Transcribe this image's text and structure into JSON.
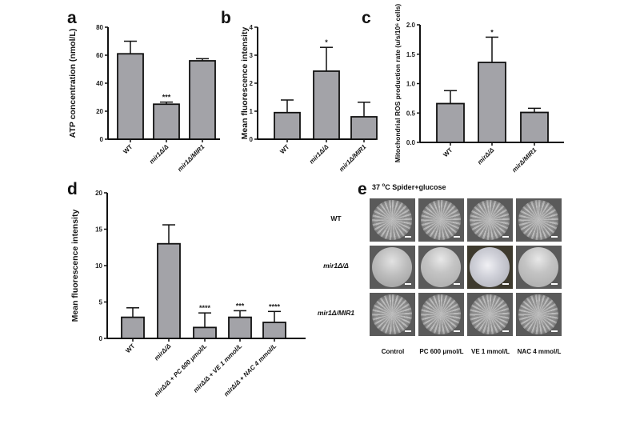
{
  "figure": {
    "panel_labels": {
      "a": "a",
      "b": "b",
      "c": "c",
      "d": "d",
      "e": "e"
    }
  },
  "chart_data": [
    {
      "panel": "a",
      "type": "bar",
      "title": "",
      "ylabel": "ATP concentration (nmol/L)",
      "xlabel": "",
      "ylim": [
        0,
        80
      ],
      "yticks": [
        0,
        20,
        40,
        60,
        80
      ],
      "categories": [
        "WT",
        "mir1Δ/Δ",
        "mir1Δ/MIR1"
      ],
      "values": [
        61,
        25,
        56
      ],
      "errors": [
        9,
        1.5,
        1.5
      ],
      "significance": [
        "",
        "***",
        ""
      ],
      "grid": false
    },
    {
      "panel": "b",
      "type": "bar",
      "title": "",
      "ylabel": "Mean fluorescence intensity",
      "xlabel": "",
      "ylim": [
        0,
        4
      ],
      "yticks": [
        0,
        1,
        2,
        3,
        4
      ],
      "categories": [
        "WT",
        "mir1Δ/Δ",
        "mir1Δ/MIR1"
      ],
      "values": [
        0.95,
        2.43,
        0.8
      ],
      "errors": [
        0.45,
        0.85,
        0.52
      ],
      "significance": [
        "",
        "*",
        ""
      ],
      "grid": false
    },
    {
      "panel": "c",
      "type": "bar",
      "title": "",
      "ylabel": "Mitochondrial ROS production rate (u/s/10⁶ cells)",
      "xlabel": "",
      "ylim": [
        0,
        2.0
      ],
      "yticks": [
        "0.0",
        "0.5",
        "1.0",
        "1.5",
        "2.0"
      ],
      "categories": [
        "WT",
        "mirΔ/Δ",
        "mirΔ/MIR1"
      ],
      "values": [
        0.66,
        1.36,
        0.51
      ],
      "errors": [
        0.22,
        0.43,
        0.07
      ],
      "significance": [
        "",
        "*",
        ""
      ],
      "grid": false
    },
    {
      "panel": "d",
      "type": "bar",
      "title": "",
      "ylabel": "Mean fluorescence intensity",
      "xlabel": "",
      "ylim": [
        0,
        20
      ],
      "yticks": [
        0,
        5,
        10,
        15,
        20
      ],
      "categories": [
        "WT",
        "mirΔ/Δ",
        "mirΔ/Δ + PC 600 μmol/L",
        "mirΔ/Δ + VE 1 mmol/L",
        "mirΔ/Δ + NAC 4 mmol/L"
      ],
      "values": [
        2.9,
        13.0,
        1.5,
        2.9,
        2.2
      ],
      "errors": [
        1.3,
        2.6,
        2.0,
        0.9,
        1.5
      ],
      "significance": [
        "",
        "",
        "****",
        "***",
        "****"
      ],
      "grid": false
    }
  ],
  "panel_e": {
    "title": "37 °C Spider+glucose",
    "title_parts": {
      "num": "37 ",
      "deg": "o",
      "rest": "C Spider+glucose"
    },
    "rows": [
      "WT",
      "mir1Δ/Δ",
      "mir1Δ/MIR1"
    ],
    "columns": [
      "Control",
      "PC 600 μmol/L",
      "VE 1 mmol/L",
      "NAC 4 mmol/L"
    ],
    "colony_morphology": [
      [
        "wrinkled",
        "wrinkled",
        "wrinkled",
        "wrinkled"
      ],
      [
        "smooth",
        "smooth-spots",
        "shiny",
        "smooth-spots"
      ],
      [
        "wrinkled",
        "wrinkled",
        "wrinkled",
        "wrinkled"
      ]
    ]
  }
}
